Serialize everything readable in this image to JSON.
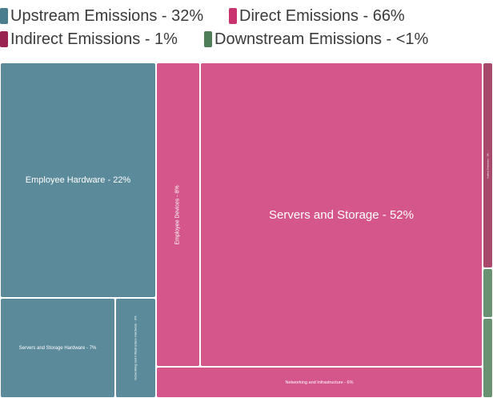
{
  "chart_data": {
    "type": "treemap",
    "legend": [
      {
        "key": "upstream",
        "label": "Upstream Emissions - 32%",
        "color": "#4a7d8d"
      },
      {
        "key": "direct",
        "label": "Direct Emissions - 66%",
        "color": "#c9336f"
      },
      {
        "key": "indirect",
        "label": "Indirect Emissions - 1%",
        "color": "#992451"
      },
      {
        "key": "downstream",
        "label": "Downstream Emissions - <1%",
        "color": "#4d7e58"
      }
    ],
    "tiles": [
      {
        "id": "employee-hardware",
        "category": "upstream",
        "label": "Employee Hardware - 22%",
        "value": 22,
        "color": "#5b8b9a"
      },
      {
        "id": "servers-storage-hardware",
        "category": "upstream",
        "label": "Servers and Storage Hardware - 7%",
        "value": 7,
        "color": "#5b8b9a"
      },
      {
        "id": "networking-infrastructure-hardware",
        "category": "upstream",
        "label": "Networking and Infrastructure Hardware - 3%",
        "value": 3,
        "color": "#5b8b9a"
      },
      {
        "id": "employee-devices",
        "category": "direct",
        "label": "Employee Devices - 8%",
        "value": 8,
        "color": "#d4568a"
      },
      {
        "id": "servers-storage",
        "category": "direct",
        "label": "Servers and Storage - 52%",
        "value": 52,
        "color": "#d4568a"
      },
      {
        "id": "networking-infrastructure",
        "category": "direct",
        "label": "Networking and Infrastructure - 6%",
        "value": 6,
        "color": "#d4568a"
      },
      {
        "id": "indirect",
        "category": "indirect",
        "label": "Indirect Emissions - 1%",
        "value": 1,
        "color": "#a8496b"
      },
      {
        "id": "downstream-1",
        "category": "downstream",
        "label": "",
        "value": 0.3,
        "color": "#6a9272"
      },
      {
        "id": "downstream-2",
        "category": "downstream",
        "label": "",
        "value": 0.3,
        "color": "#6a9272"
      }
    ]
  }
}
